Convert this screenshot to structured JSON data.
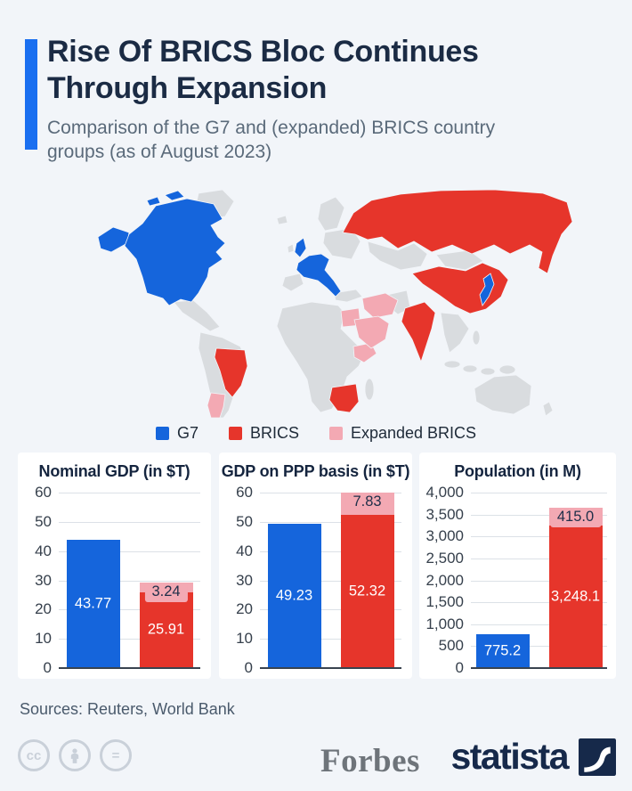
{
  "header": {
    "title": "Rise Of BRICS Bloc Continues Through Expansion",
    "subtitle": "Comparison of the G7 and (expanded) BRICS country groups (as of August 2023)"
  },
  "colors": {
    "g7": "#1565dc",
    "brics": "#e6352b",
    "expanded_brics": "#f3a9b3",
    "accent": "#1a6ff0",
    "map_base": "#d9dcdf"
  },
  "legend": {
    "items": [
      {
        "label": "G7",
        "color_key": "g7"
      },
      {
        "label": "BRICS",
        "color_key": "brics"
      },
      {
        "label": "Expanded BRICS",
        "color_key": "expanded_brics"
      }
    ]
  },
  "map": {
    "groups": {
      "g7": [
        "United States",
        "Canada",
        "United Kingdom",
        "France",
        "Germany",
        "Italy",
        "Japan"
      ],
      "brics": [
        "Brazil",
        "Russia",
        "India",
        "China",
        "South Africa"
      ],
      "expanded_brics": [
        "Argentina",
        "Egypt",
        "Ethiopia",
        "Iran",
        "Saudi Arabia",
        "United Arab Emirates"
      ]
    }
  },
  "chart_data": [
    {
      "type": "stacked-bar",
      "title": "Nominal GDP (in $T)",
      "ylim": [
        0,
        60
      ],
      "y_ticks": [
        {
          "v": 0,
          "label": "0"
        },
        {
          "v": 10,
          "label": "10"
        },
        {
          "v": 20,
          "label": "20"
        },
        {
          "v": 30,
          "label": "30"
        },
        {
          "v": 40,
          "label": "40"
        },
        {
          "v": 50,
          "label": "50"
        },
        {
          "v": 60,
          "label": "60"
        }
      ],
      "categories": [
        "G7",
        "BRICS"
      ],
      "bars": [
        {
          "category": "G7",
          "segments": [
            {
              "series": "G7",
              "value": 43.77,
              "label": "43.77",
              "color_key": "g7",
              "label_style": "inside"
            }
          ]
        },
        {
          "category": "BRICS",
          "segments": [
            {
              "series": "BRICS",
              "value": 25.91,
              "label": "25.91",
              "color_key": "brics",
              "label_style": "inside"
            },
            {
              "series": "Expanded BRICS",
              "value": 3.24,
              "label": "3.24",
              "color_key": "expanded_brics",
              "label_style": "pill"
            }
          ]
        }
      ]
    },
    {
      "type": "stacked-bar",
      "title": "GDP on PPP basis (in $T)",
      "ylim": [
        0,
        60
      ],
      "y_ticks": [
        {
          "v": 0,
          "label": "0"
        },
        {
          "v": 10,
          "label": "10"
        },
        {
          "v": 20,
          "label": "20"
        },
        {
          "v": 30,
          "label": "30"
        },
        {
          "v": 40,
          "label": "40"
        },
        {
          "v": 50,
          "label": "50"
        },
        {
          "v": 60,
          "label": "60"
        }
      ],
      "categories": [
        "G7",
        "BRICS"
      ],
      "bars": [
        {
          "category": "G7",
          "segments": [
            {
              "series": "G7",
              "value": 49.23,
              "label": "49.23",
              "color_key": "g7",
              "label_style": "inside"
            }
          ]
        },
        {
          "category": "BRICS",
          "segments": [
            {
              "series": "BRICS",
              "value": 52.32,
              "label": "52.32",
              "color_key": "brics",
              "label_style": "inside"
            },
            {
              "series": "Expanded BRICS",
              "value": 7.83,
              "label": "7.83",
              "color_key": "expanded_brics",
              "label_style": "pill"
            }
          ]
        }
      ]
    },
    {
      "type": "stacked-bar",
      "title": "Population (in M)",
      "ylim": [
        0,
        4000
      ],
      "y_ticks": [
        {
          "v": 0,
          "label": "0"
        },
        {
          "v": 500,
          "label": "500"
        },
        {
          "v": 1000,
          "label": "1,000"
        },
        {
          "v": 1500,
          "label": "1,500"
        },
        {
          "v": 2000,
          "label": "2,000"
        },
        {
          "v": 2500,
          "label": "2,500"
        },
        {
          "v": 3000,
          "label": "3,000"
        },
        {
          "v": 3500,
          "label": "3,500"
        },
        {
          "v": 4000,
          "label": "4,000"
        }
      ],
      "categories": [
        "G7",
        "BRICS"
      ],
      "bars": [
        {
          "category": "G7",
          "segments": [
            {
              "series": "G7",
              "value": 775.2,
              "label": "775.2",
              "color_key": "g7",
              "label_style": "inside"
            }
          ]
        },
        {
          "category": "BRICS",
          "segments": [
            {
              "series": "BRICS",
              "value": 3248.1,
              "label": "3,248.1",
              "color_key": "brics",
              "label_style": "inside"
            },
            {
              "series": "Expanded BRICS",
              "value": 415.0,
              "label": "415.0",
              "color_key": "expanded_brics",
              "label_style": "pill"
            }
          ]
        }
      ]
    }
  ],
  "footer": {
    "sources_label": "Sources: Reuters, World Bank",
    "cc_label": "cc",
    "nd_label": "=",
    "forbes": "Forbes",
    "statista": "statista"
  }
}
